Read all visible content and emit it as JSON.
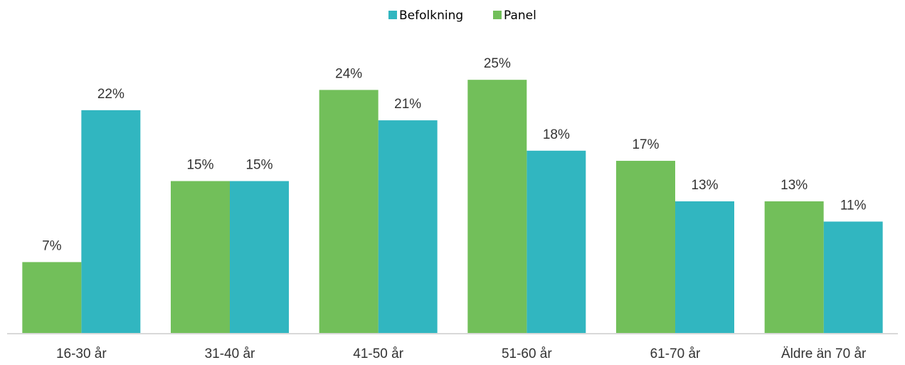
{
  "chart_data": {
    "type": "bar",
    "categories": [
      "16-30 år",
      "31-40 år",
      "41-50 år",
      "51-60 år",
      "61-70 år",
      "Äldre än 70 år"
    ],
    "series": [
      {
        "name": "Befolkning",
        "color": "#31b6c0",
        "values": [
          22,
          15,
          21,
          18,
          13,
          11
        ],
        "value_labels": [
          "22%",
          "15%",
          "21%",
          "18%",
          "13%",
          "11%"
        ]
      },
      {
        "name": "Panel",
        "color": "#72bf5a",
        "values": [
          7,
          15,
          24,
          25,
          17,
          13
        ],
        "value_labels": [
          "7%",
          "15%",
          "24%",
          "25%",
          "17%",
          "13%"
        ]
      }
    ],
    "ylim": [
      0,
      30
    ],
    "legend": "top"
  }
}
